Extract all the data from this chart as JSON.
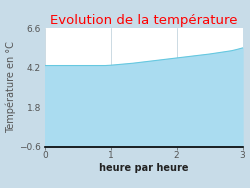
{
  "title": "Evolution de la température",
  "title_color": "#ff0000",
  "xlabel": "heure par heure",
  "ylabel": "Température en °C",
  "background_color": "#c8dce8",
  "plot_bg_color": "#ffffff",
  "line_color": "#66c8e0",
  "fill_color": "#aadcf0",
  "xlim": [
    0,
    3
  ],
  "ylim": [
    -0.6,
    6.6
  ],
  "xticks": [
    0,
    1,
    2,
    3
  ],
  "yticks": [
    -0.6,
    1.8,
    4.2,
    6.6
  ],
  "x": [
    0,
    0.083,
    0.167,
    0.25,
    0.333,
    0.417,
    0.5,
    0.583,
    0.667,
    0.75,
    0.833,
    0.917,
    1.0,
    1.083,
    1.167,
    1.25,
    1.333,
    1.417,
    1.5,
    1.583,
    1.667,
    1.75,
    1.833,
    1.917,
    2.0,
    2.083,
    2.167,
    2.25,
    2.333,
    2.417,
    2.5,
    2.583,
    2.667,
    2.75,
    2.833,
    2.917,
    3.0
  ],
  "y": [
    4.33,
    4.33,
    4.33,
    4.33,
    4.33,
    4.33,
    4.33,
    4.33,
    4.33,
    4.33,
    4.33,
    4.33,
    4.35,
    4.38,
    4.41,
    4.44,
    4.47,
    4.51,
    4.55,
    4.59,
    4.63,
    4.67,
    4.71,
    4.75,
    4.79,
    4.83,
    4.87,
    4.91,
    4.95,
    4.99,
    5.03,
    5.08,
    5.13,
    5.18,
    5.23,
    5.31,
    5.4
  ],
  "title_fontsize": 9.5,
  "label_fontsize": 7,
  "tick_fontsize": 6.5,
  "grid_color": "#b8ccd8",
  "spine_color": "#000000"
}
